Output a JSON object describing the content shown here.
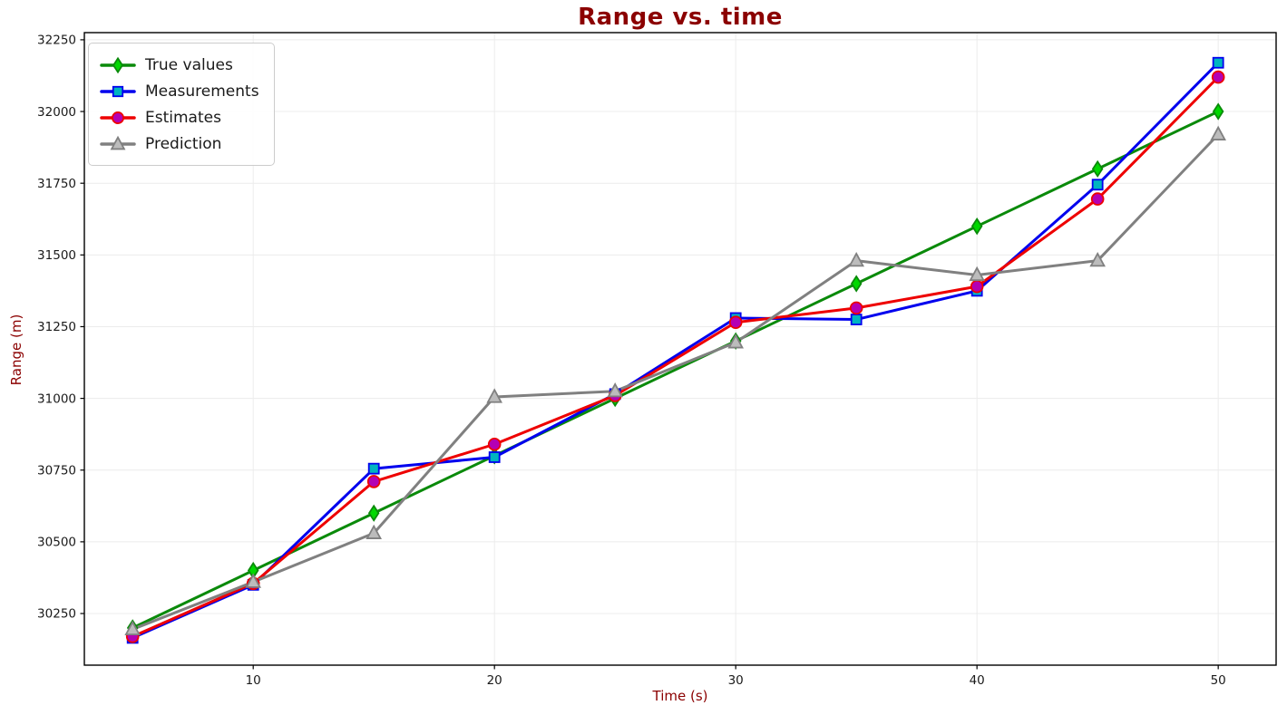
{
  "figure": {
    "background": "#ffffff",
    "grid_color": "#ececec",
    "spine_color": "#000000",
    "tick_label_color": "#1a1a1a"
  },
  "chart_data": {
    "type": "line",
    "title": "Range vs. time",
    "title_color": "#8B0000",
    "xlabel": "Time (s)",
    "ylabel": "Range (m)",
    "axis_label_color": "#8B0000",
    "x": [
      5,
      10,
      15,
      20,
      25,
      30,
      35,
      40,
      45,
      50
    ],
    "series": [
      {
        "name": "True values",
        "line_color": "#0a8a0a",
        "marker": "thin-diamond",
        "marker_fill": "#00d800",
        "values": [
          30200,
          30400,
          30600,
          30800,
          31000,
          31200,
          31400,
          31600,
          31800,
          32000
        ]
      },
      {
        "name": "Measurements",
        "line_color": "#0000ee",
        "marker": "square",
        "marker_fill": "#00b5c0",
        "values": [
          30165,
          30350,
          30755,
          30795,
          31015,
          31280,
          31275,
          31375,
          31745,
          32170
        ]
      },
      {
        "name": "Estimates",
        "line_color": "#ee0000",
        "marker": "circle",
        "marker_fill": "#b400b4",
        "values": [
          30170,
          30355,
          30710,
          30840,
          31010,
          31265,
          31315,
          31390,
          31695,
          32120
        ]
      },
      {
        "name": "Prediction",
        "line_color": "#808080",
        "marker": "triangle-up",
        "marker_fill": "#bcbcbc",
        "values": [
          30195,
          30360,
          30530,
          31005,
          31025,
          31195,
          31480,
          31430,
          31480,
          31920
        ]
      }
    ],
    "xlim": [
      3.0,
      52.4
    ],
    "ylim": [
      30070,
      32275
    ],
    "xticks": [
      10,
      20,
      30,
      40,
      50
    ],
    "yticks": [
      30250,
      30500,
      30750,
      31000,
      31250,
      31500,
      31750,
      32000,
      32250
    ],
    "grid": true,
    "legend_position": "upper left",
    "legend_labels": [
      "True values",
      "Measurements",
      "Estimates",
      "Prediction"
    ]
  }
}
